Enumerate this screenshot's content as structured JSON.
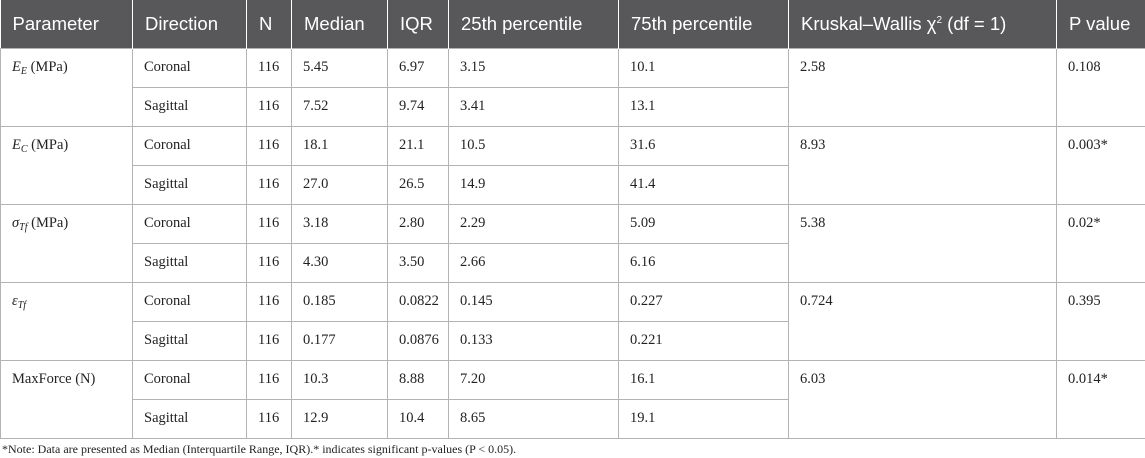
{
  "table": {
    "headers": {
      "parameter": "Parameter",
      "direction": "Direction",
      "n": "N",
      "median": "Median",
      "iqr": "IQR",
      "p25": "25th percentile",
      "p75": "75th percentile",
      "kw": "Kruskal–Wallis χ",
      "kw_sup": "2",
      "kw_df": " (df = 1)",
      "pvalue": "P value"
    },
    "groups": [
      {
        "param_sym": "E",
        "param_sub": "E",
        "param_unit": " (MPa)",
        "kw": "2.58",
        "p": "0.108",
        "rows": [
          {
            "direction": "Coronal",
            "n": "116",
            "median": "5.45",
            "iqr": "6.97",
            "p25": "3.15",
            "p75": "10.1"
          },
          {
            "direction": "Sagittal",
            "n": "116",
            "median": "7.52",
            "iqr": "9.74",
            "p25": "3.41",
            "p75": "13.1"
          }
        ]
      },
      {
        "param_sym": "E",
        "param_sub": "C",
        "param_unit": " (MPa)",
        "kw": "8.93",
        "p": "0.003*",
        "rows": [
          {
            "direction": "Coronal",
            "n": "116",
            "median": "18.1",
            "iqr": "21.1",
            "p25": "10.5",
            "p75": "31.6"
          },
          {
            "direction": "Sagittal",
            "n": "116",
            "median": "27.0",
            "iqr": "26.5",
            "p25": "14.9",
            "p75": "41.4"
          }
        ]
      },
      {
        "param_sym": "σ",
        "param_sub": "Tf",
        "param_unit": " (MPa)",
        "kw": "5.38",
        "p": "0.02*",
        "rows": [
          {
            "direction": "Coronal",
            "n": "116",
            "median": "3.18",
            "iqr": "2.80",
            "p25": "2.29",
            "p75": "5.09"
          },
          {
            "direction": "Sagittal",
            "n": "116",
            "median": "4.30",
            "iqr": "3.50",
            "p25": "2.66",
            "p75": "6.16"
          }
        ]
      },
      {
        "param_sym": "ε",
        "param_sub": "Tf",
        "param_unit": "",
        "kw": "0.724",
        "p": "0.395",
        "rows": [
          {
            "direction": "Coronal",
            "n": "116",
            "median": "0.185",
            "iqr": "0.0822",
            "p25": "0.145",
            "p75": "0.227"
          },
          {
            "direction": "Sagittal",
            "n": "116",
            "median": "0.177",
            "iqr": "0.0876",
            "p25": "0.133",
            "p75": "0.221"
          }
        ]
      },
      {
        "param_sym": "",
        "param_sub": "",
        "param_unit": "MaxForce (N)",
        "kw": "6.03",
        "p": "0.014*",
        "rows": [
          {
            "direction": "Coronal",
            "n": "116",
            "median": "10.3",
            "iqr": "8.88",
            "p25": "7.20",
            "p75": "16.1"
          },
          {
            "direction": "Sagittal",
            "n": "116",
            "median": "12.9",
            "iqr": "10.4",
            "p25": "8.65",
            "p75": "19.1"
          }
        ]
      }
    ]
  },
  "footnote": "*Note: Data are presented as Median (Interquartile Range, IQR).* indicates significant p-values (P < 0.05)."
}
